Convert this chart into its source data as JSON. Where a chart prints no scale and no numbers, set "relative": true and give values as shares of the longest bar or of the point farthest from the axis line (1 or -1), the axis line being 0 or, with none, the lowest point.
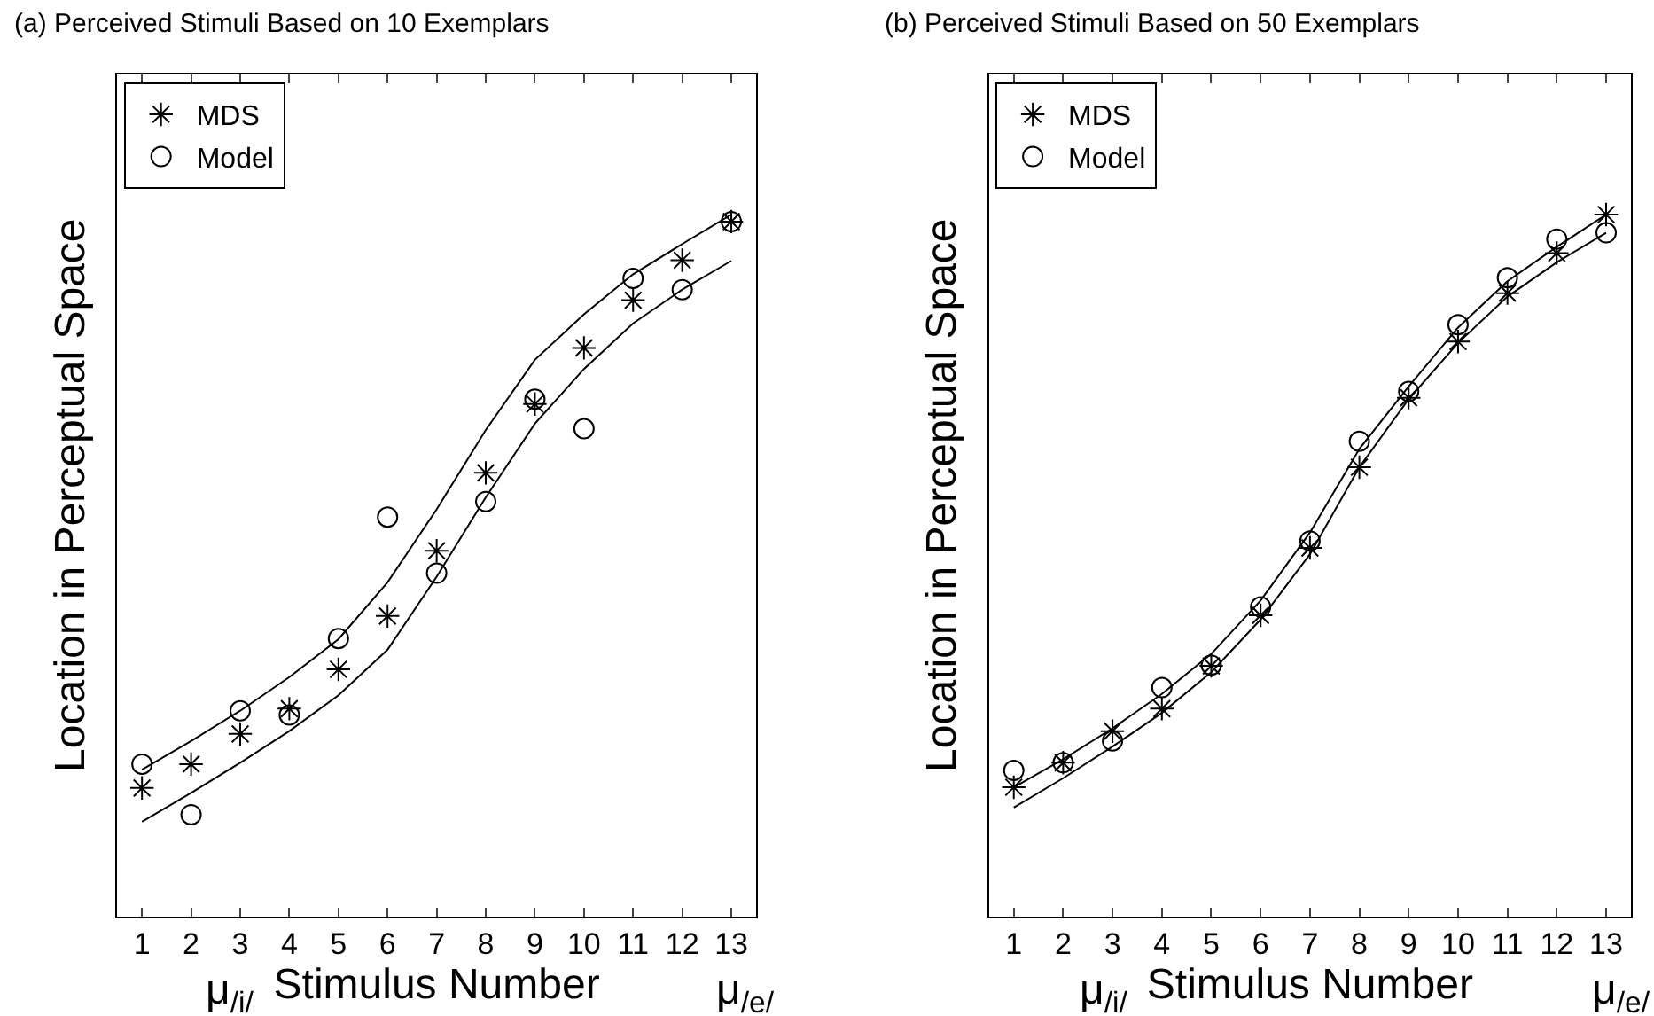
{
  "chart_data": [
    {
      "type": "scatter",
      "title": "(a) Perceived Stimuli Based on 10 Exemplars",
      "xlabel": "Stimulus Number",
      "ylabel": "Location in Perceptual Space",
      "relative": true,
      "x": [
        1,
        2,
        3,
        4,
        5,
        6,
        7,
        8,
        9,
        10,
        11,
        12,
        13
      ],
      "xlim": [
        0.5,
        13.5
      ],
      "xticks": [
        1,
        2,
        3,
        4,
        5,
        6,
        7,
        8,
        9,
        10,
        11,
        12,
        13
      ],
      "tick_labels": "x",
      "legend": "top left",
      "annotations": [
        "μ$_{/i/}$",
        "μ$_{/e/}$"
      ],
      "series": [
        {
          "name": "MDS",
          "marker": "cross",
          "color": "#000000",
          "values": [
            0.183,
            0.217,
            0.26,
            0.296,
            0.352,
            0.428,
            0.521,
            0.632,
            0.73,
            0.81,
            0.878,
            0.935,
            0.99
          ]
        },
        {
          "name": "Model",
          "marker": "circle",
          "color": "#000000",
          "values": [
            0.217,
            0.145,
            0.293,
            0.287,
            0.396,
            0.569,
            0.489,
            0.591,
            0.737,
            0.695,
            0.909,
            0.893,
            0.99
          ]
        },
        {
          "type": "line",
          "marker": "none",
          "line_style": "solid",
          "color": "#000000",
          "values": [
            0.209,
            0.25,
            0.293,
            0.341,
            0.395,
            0.476,
            0.58,
            0.693,
            0.793,
            0.858,
            0.915,
            0.958,
            1.0
          ]
        },
        {
          "type": "line",
          "marker": "none",
          "line_style": "solid",
          "color": "#000000",
          "values": [
            0.135,
            0.176,
            0.219,
            0.264,
            0.315,
            0.38,
            0.484,
            0.597,
            0.702,
            0.78,
            0.845,
            0.893,
            0.934
          ]
        }
      ]
    },
    {
      "type": "scatter",
      "title": "(b) Perceived Stimuli Based on 50 Exemplars",
      "xlabel": "Stimulus Number",
      "ylabel": "Location in Perceptual Space",
      "relative": true,
      "x": [
        1,
        2,
        3,
        4,
        5,
        6,
        7,
        8,
        9,
        10,
        11,
        12,
        13
      ],
      "xlim": [
        0.5,
        13.5
      ],
      "xticks": [
        1,
        2,
        3,
        4,
        5,
        6,
        7,
        8,
        9,
        10,
        11,
        12,
        13
      ],
      "tick_labels": "x",
      "legend": "top left",
      "annotations": [
        "μ$_{/i/}$",
        "μ$_{/e/}$"
      ],
      "series": [
        {
          "name": "MDS",
          "marker": "cross",
          "color": "#000000",
          "values": [
            0.184,
            0.219,
            0.264,
            0.296,
            0.357,
            0.429,
            0.525,
            0.64,
            0.739,
            0.819,
            0.888,
            0.945,
            1.0
          ]
        },
        {
          "name": "Model",
          "marker": "circle",
          "color": "#000000",
          "values": [
            0.208,
            0.219,
            0.25,
            0.326,
            0.358,
            0.441,
            0.535,
            0.677,
            0.748,
            0.843,
            0.91,
            0.965,
            0.974
          ]
        },
        {
          "type": "line",
          "marker": "none",
          "line_style": "solid",
          "color": "#000000",
          "values": [
            0.184,
            0.224,
            0.268,
            0.317,
            0.374,
            0.45,
            0.547,
            0.666,
            0.755,
            0.839,
            0.905,
            0.954,
            1.0
          ]
        },
        {
          "type": "line",
          "marker": "none",
          "line_style": "solid",
          "color": "#000000",
          "values": [
            0.155,
            0.197,
            0.242,
            0.29,
            0.348,
            0.423,
            0.516,
            0.64,
            0.737,
            0.817,
            0.883,
            0.932,
            0.974
          ]
        }
      ]
    }
  ]
}
